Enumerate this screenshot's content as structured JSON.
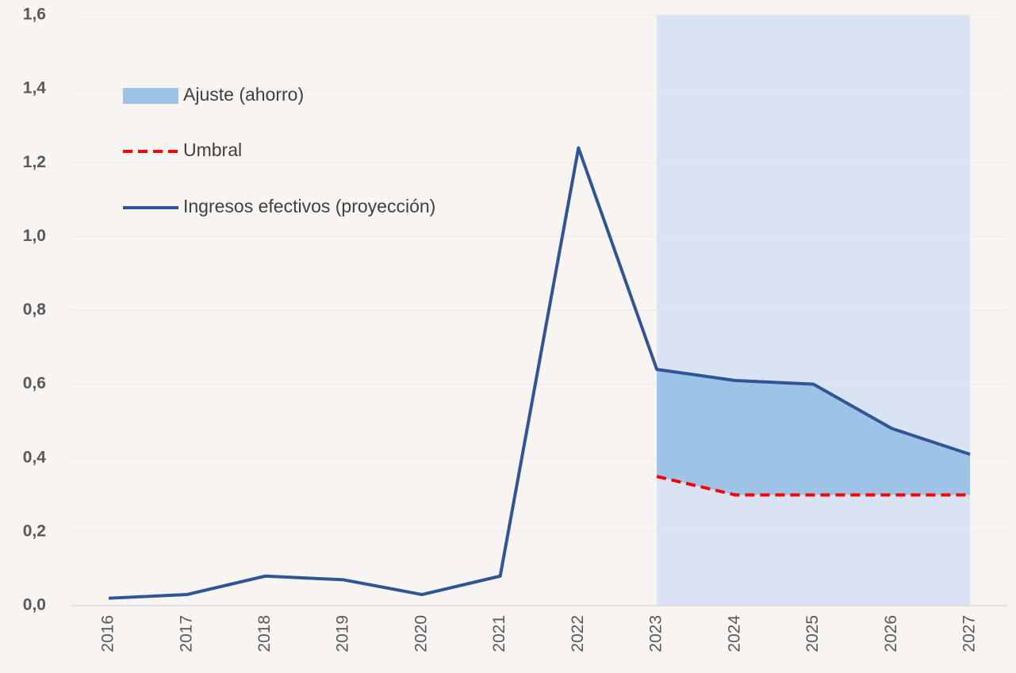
{
  "chart_data": {
    "type": "line",
    "categories": [
      "2016",
      "2017",
      "2018",
      "2019",
      "2020",
      "2021",
      "2022",
      "2023",
      "2024",
      "2025",
      "2026",
      "2027"
    ],
    "series": [
      {
        "name": "Ajuste (ahorro)",
        "color": "#9dc3e6",
        "style": "area"
      },
      {
        "name": "Umbral",
        "color": "#ff0000",
        "style": "dashed",
        "values": [
          null,
          null,
          null,
          null,
          null,
          null,
          null,
          0.35,
          0.3,
          0.3,
          0.3,
          0.3
        ]
      },
      {
        "name": "Ingresos efectivos (proyección)",
        "color": "#2f5597",
        "style": "solid",
        "values": [
          0.02,
          0.03,
          0.08,
          0.07,
          0.03,
          0.08,
          1.24,
          0.64,
          0.61,
          0.6,
          0.48,
          0.41
        ]
      }
    ],
    "projection_color": "#dae3f3",
    "ylim": [
      0,
      1.6
    ],
    "yticks": [
      {
        "value": 0,
        "label": "0,0"
      },
      {
        "value": 0.2,
        "label": "0,2"
      },
      {
        "value": 0.4,
        "label": "0,4"
      },
      {
        "value": 0.6,
        "label": "0,6"
      },
      {
        "value": 0.8,
        "label": "0,8"
      },
      {
        "value": 1,
        "label": "1,0"
      },
      {
        "value": 1.2,
        "label": "1,2"
      },
      {
        "value": 1.4,
        "label": "1,4"
      },
      {
        "value": 1.6,
        "label": "1,6"
      }
    ],
    "grid": true
  }
}
